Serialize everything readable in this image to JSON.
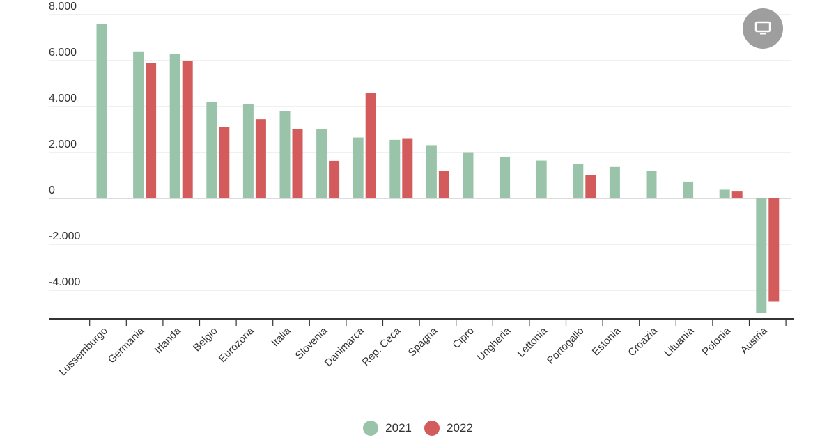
{
  "chart_data": {
    "type": "bar",
    "categories": [
      "Lussemburgo",
      "Germania",
      "Irlanda",
      "Belgio",
      "Eurozona",
      "Italia",
      "Slovenia",
      "Danimarca",
      "Rep. Ceca",
      "Spagna",
      "Cipro",
      "Ungheria",
      "Lettonia",
      "Portogallo",
      "Estonia",
      "Croazia",
      "Lituania",
      "Polonia",
      "Austria"
    ],
    "series": [
      {
        "name": "2021",
        "color": "#99c4a9",
        "values": [
          7600,
          6400,
          6300,
          4200,
          4100,
          3800,
          3000,
          2650,
          2550,
          2320,
          1980,
          1820,
          1650,
          1500,
          1370,
          1200,
          730,
          380,
          -5000
        ]
      },
      {
        "name": "2022",
        "color": "#d35b5b",
        "values": [
          null,
          5900,
          5980,
          3100,
          3450,
          3020,
          1640,
          4580,
          2620,
          1200,
          null,
          null,
          null,
          1020,
          null,
          null,
          null,
          300,
          -4500
        ]
      }
    ],
    "y_ticks": [
      "8.000",
      "6.000",
      "4.000",
      "2.000",
      "0",
      "-2.000",
      "-4.000"
    ],
    "y_tick_values": [
      8000,
      6000,
      4000,
      2000,
      0,
      -2000,
      -4000
    ],
    "ylim": [
      -5200,
      8000
    ],
    "grid": true,
    "legend": "bottom-center"
  },
  "legend": {
    "items": [
      {
        "label": "2021",
        "color": "#99c4a9"
      },
      {
        "label": "2022",
        "color": "#d35b5b"
      }
    ]
  },
  "controls": {
    "screen_icon": "monitor-icon"
  }
}
